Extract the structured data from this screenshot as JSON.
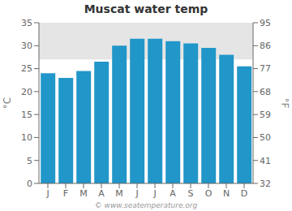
{
  "chart_data": {
    "type": "bar",
    "title": "Muscat water temp",
    "categories": [
      "J",
      "F",
      "M",
      "A",
      "M",
      "J",
      "J",
      "A",
      "S",
      "O",
      "N",
      "D"
    ],
    "values": [
      24,
      23,
      24.5,
      26.5,
      30,
      31.5,
      31.5,
      31,
      30.5,
      29.5,
      28,
      25.5
    ],
    "color": "#2196c8",
    "ylabel": "°C",
    "y2label": "°F",
    "ylim": [
      0,
      35
    ],
    "yticks": [
      0,
      5,
      10,
      15,
      20,
      25,
      30,
      35
    ],
    "y2lim": [
      32,
      95
    ],
    "y2ticks": [
      32,
      41,
      50,
      59,
      68,
      77,
      86,
      95
    ],
    "shaded_band": [
      27,
      35
    ],
    "annotations": [
      "© www.seatemperature.org"
    ],
    "grid": false
  }
}
